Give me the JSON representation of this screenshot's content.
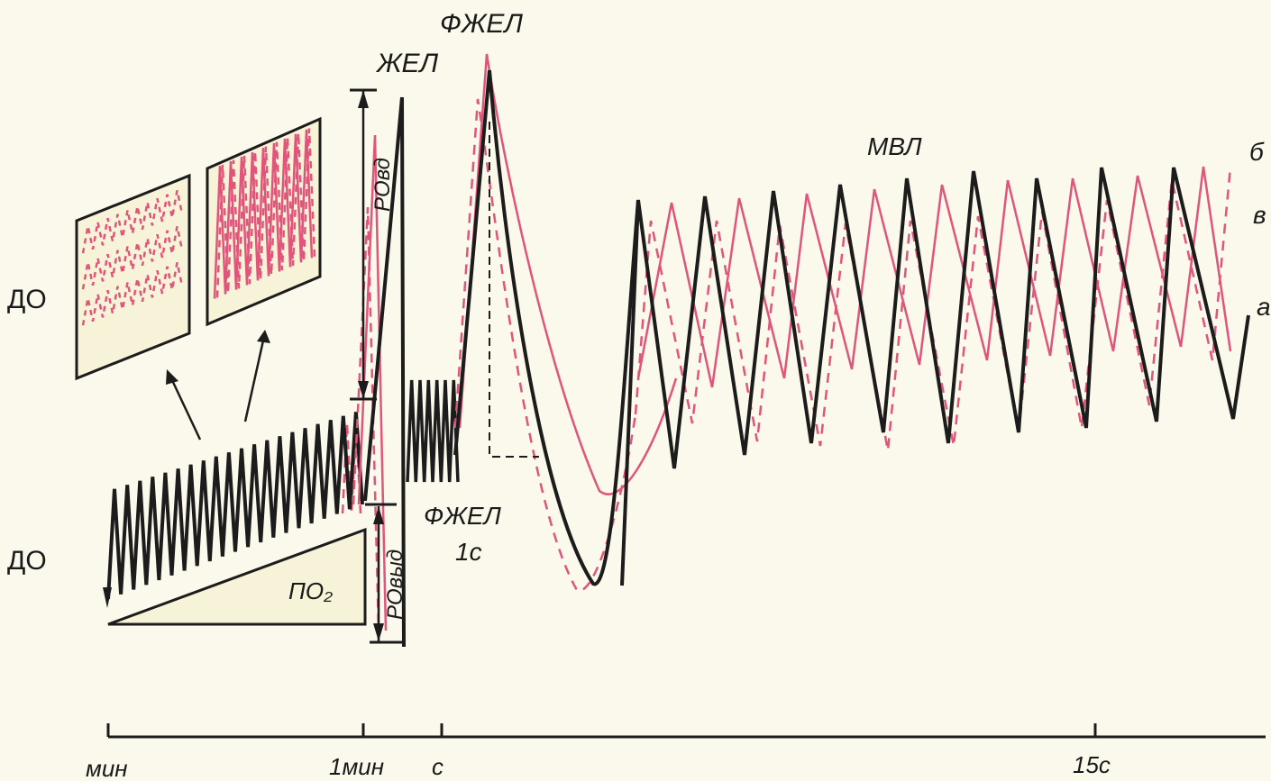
{
  "labels": {
    "do_top": "ДО",
    "do_bottom": "ДО",
    "zhel": "ЖЕЛ",
    "fzhel": "ФЖЕЛ",
    "fzhel_1s_line1": "ФЖЕЛ",
    "fzhel_1s_line2": "1с",
    "mvl": "МВЛ",
    "ro_vd": "РОвд",
    "ro_vyd": "РОвыд",
    "po2": "ПО₂",
    "curve_b": "б",
    "curve_v": "в",
    "curve_a": "а"
  },
  "axis": {
    "tick_min": "мин",
    "tick_1min": "1мин",
    "tick_s": "с",
    "tick_15s": "15с"
  },
  "colors": {
    "black_trace": "#1c1c1c",
    "pink_trace": "#e0557a",
    "panel_fill": "#f7f3d9",
    "background": "#fbf8ec"
  }
}
